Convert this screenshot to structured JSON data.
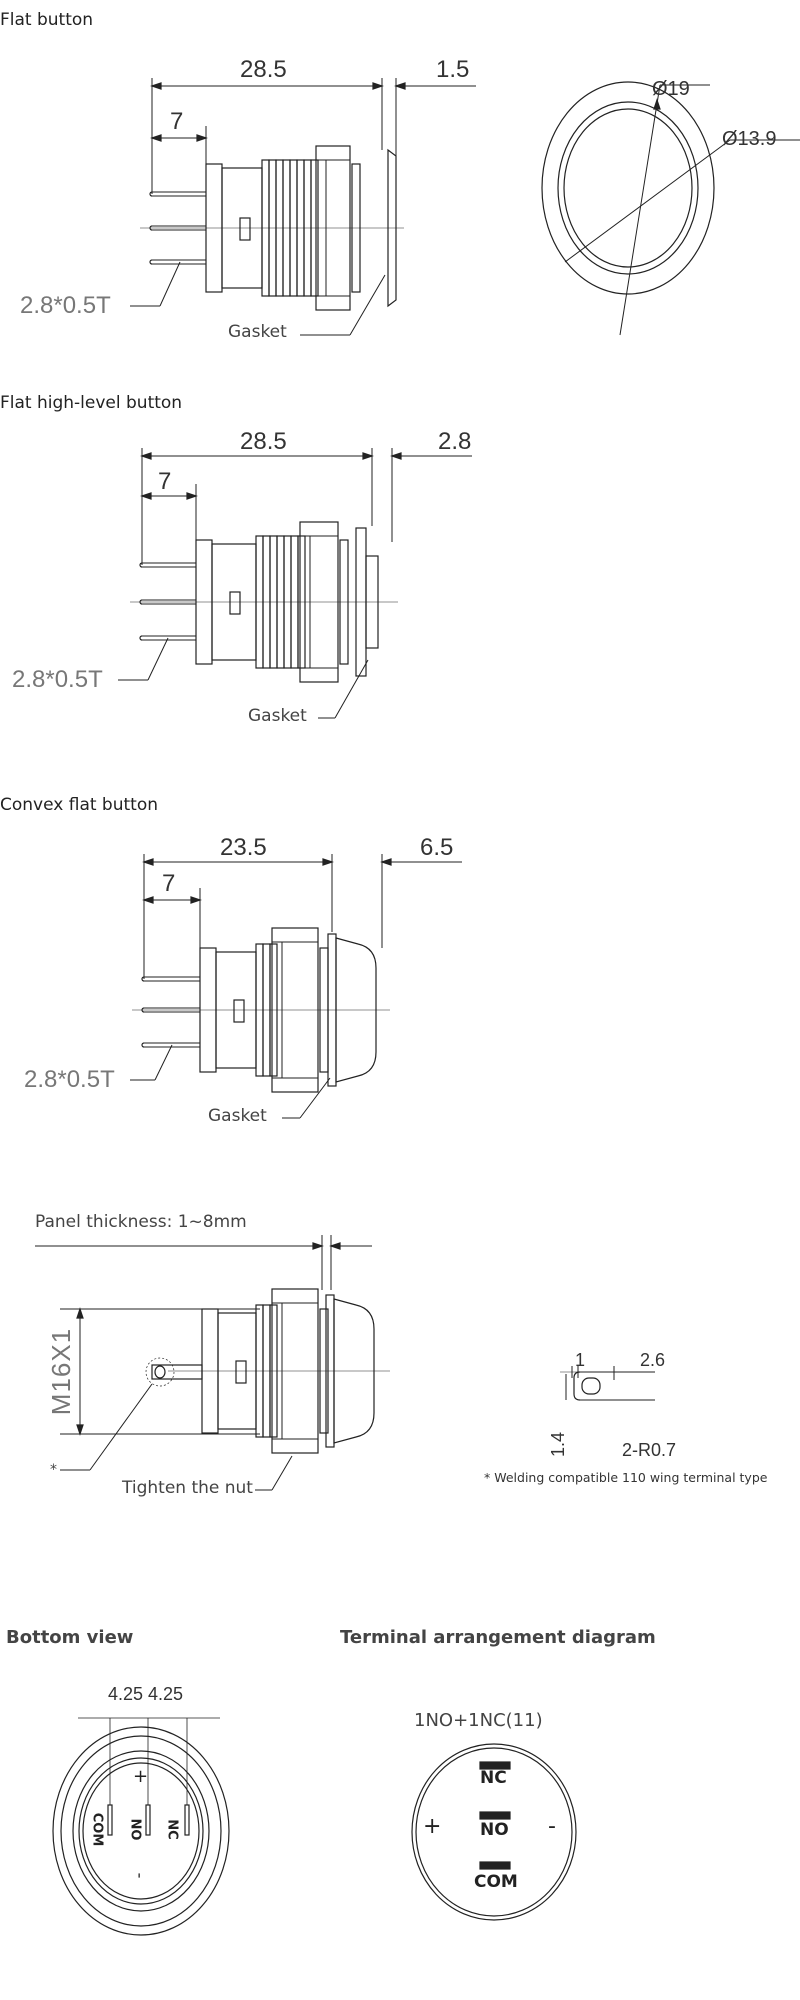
{
  "sections": {
    "flat": {
      "title": "Flat button",
      "dim_length": "28.5",
      "dim_front": "1.5",
      "dim_pin": "7",
      "terminal": "2.8*0.5T",
      "gasket": "Gasket",
      "outer_dia": "Ø19",
      "inner_dia": "Ø13.9"
    },
    "high_level": {
      "title": "Flat high-level button",
      "dim_length": "28.5",
      "dim_front": "2.8",
      "dim_pin": "7",
      "terminal": "2.8*0.5T",
      "gasket": "Gasket"
    },
    "convex": {
      "title": "Convex flat button",
      "dim_length": "23.5",
      "dim_front": "6.5",
      "dim_pin": "7",
      "terminal": "2.8*0.5T",
      "gasket": "Gasket"
    },
    "mounting": {
      "panel_thickness": "Panel thickness: 1~8mm",
      "thread": "M16X1",
      "asterisk": "*",
      "nut": "Tighten the nut",
      "tab_w1": "1",
      "tab_w2": "2.6",
      "tab_h": "1.4",
      "tab_radius": "2-R0.7",
      "note": "* Welding compatible 110 wing terminal type"
    },
    "bottom_view": {
      "title": "Bottom view",
      "pitch1": "4.25",
      "pitch2": "4.25",
      "pins": [
        "COM",
        "NO",
        "NC"
      ],
      "plus": "+",
      "minus": "-"
    },
    "terminal_diagram": {
      "title": "Terminal arrangement diagram",
      "config": "1NO+1NC(11)",
      "pins": [
        "NC",
        "NO",
        "COM"
      ],
      "plus": "+",
      "minus": "-"
    }
  }
}
